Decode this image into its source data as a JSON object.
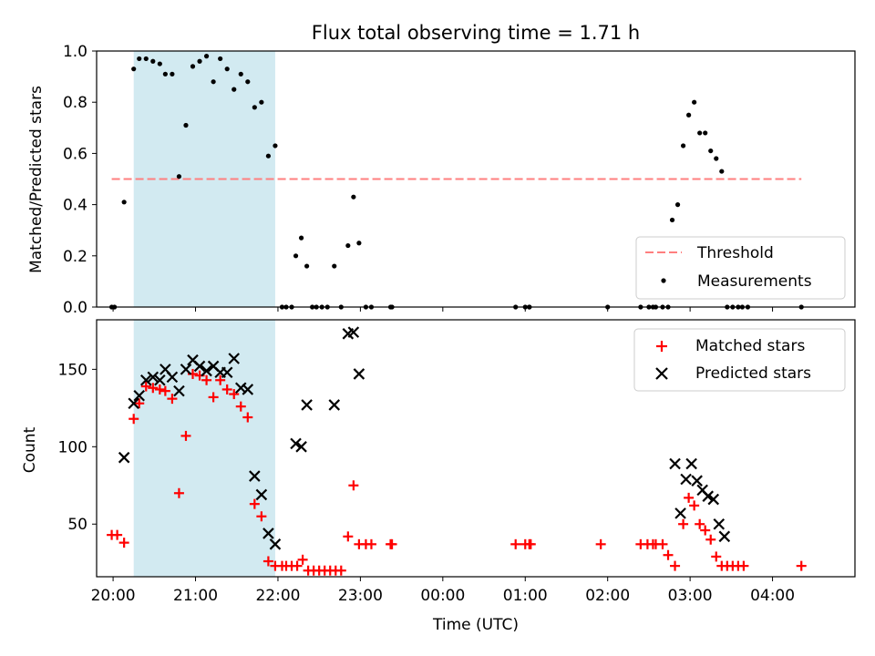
{
  "chart_data": [
    {
      "type": "scatter",
      "title": "Flux total observing time = 1.71 h",
      "ylabel": "Matched/Predicted stars",
      "xlim": [
        "19:48",
        "05:00"
      ],
      "ylim": [
        0,
        1.0
      ],
      "yticks": [
        "0.0",
        "0.2",
        "0.4",
        "0.6",
        "0.8",
        "1.0"
      ],
      "threshold": {
        "label": "Threshold",
        "value": 0.5,
        "x_range": [
          "19:59",
          "04:21"
        ],
        "color": "#ff7f7f"
      },
      "shaded_interval": {
        "start": "20:15",
        "end": "21:58",
        "color": "#add8e6"
      },
      "legend_position": "lower-right",
      "series": [
        {
          "name": "Measurements",
          "color": "#000000",
          "points": [
            [
              "19:59",
              0
            ],
            [
              "20:01",
              0
            ],
            [
              "20:08",
              0.41
            ],
            [
              "20:15",
              0.93
            ],
            [
              "20:19",
              0.97
            ],
            [
              "20:24",
              0.97
            ],
            [
              "20:29",
              0.96
            ],
            [
              "20:34",
              0.95
            ],
            [
              "20:38",
              0.91
            ],
            [
              "20:43",
              0.91
            ],
            [
              "20:48",
              0.51
            ],
            [
              "20:53",
              0.71
            ],
            [
              "20:58",
              0.94
            ],
            [
              "21:03",
              0.96
            ],
            [
              "21:08",
              0.98
            ],
            [
              "21:13",
              0.88
            ],
            [
              "21:18",
              0.97
            ],
            [
              "21:23",
              0.93
            ],
            [
              "21:28",
              0.85
            ],
            [
              "21:33",
              0.91
            ],
            [
              "21:38",
              0.88
            ],
            [
              "21:43",
              0.78
            ],
            [
              "21:48",
              0.8
            ],
            [
              "21:53",
              0.59
            ],
            [
              "21:58",
              0.63
            ],
            [
              "22:03",
              0
            ],
            [
              "22:06",
              0
            ],
            [
              "22:10",
              0
            ],
            [
              "22:13",
              0.2
            ],
            [
              "22:17",
              0.27
            ],
            [
              "22:21",
              0.16
            ],
            [
              "22:25",
              0
            ],
            [
              "22:28",
              0
            ],
            [
              "22:32",
              0
            ],
            [
              "22:36",
              0
            ],
            [
              "22:41",
              0.16
            ],
            [
              "22:46",
              0
            ],
            [
              "22:51",
              0.24
            ],
            [
              "22:55",
              0.43
            ],
            [
              "22:59",
              0.25
            ],
            [
              "23:04",
              0
            ],
            [
              "23:08",
              0
            ],
            [
              "23:22",
              0
            ],
            [
              "23:23",
              0
            ],
            [
              "00:53",
              0
            ],
            [
              "01:00",
              0
            ],
            [
              "01:03",
              0
            ],
            [
              "01:03",
              0
            ],
            [
              "02:00",
              0
            ],
            [
              "02:24",
              0
            ],
            [
              "02:30",
              0
            ],
            [
              "02:33",
              0
            ],
            [
              "02:35",
              0
            ],
            [
              "02:40",
              0
            ],
            [
              "02:44",
              0
            ],
            [
              "02:47",
              0.34
            ],
            [
              "02:51",
              0.4
            ],
            [
              "02:55",
              0.63
            ],
            [
              "02:59",
              0.75
            ],
            [
              "03:03",
              0.8
            ],
            [
              "03:07",
              0.68
            ],
            [
              "03:11",
              0.68
            ],
            [
              "03:15",
              0.61
            ],
            [
              "03:19",
              0.58
            ],
            [
              "03:23",
              0.53
            ],
            [
              "03:27",
              0
            ],
            [
              "03:31",
              0
            ],
            [
              "03:35",
              0
            ],
            [
              "03:38",
              0
            ],
            [
              "03:42",
              0
            ],
            [
              "04:21",
              0
            ]
          ]
        }
      ]
    },
    {
      "type": "scatter",
      "xlabel": "Time (UTC)",
      "ylabel": "Count",
      "xlim": [
        "19:48",
        "05:00"
      ],
      "ylim": [
        16,
        182
      ],
      "yticks": [
        "50",
        "100",
        "150"
      ],
      "xticks": [
        "20:00",
        "21:00",
        "22:00",
        "23:00",
        "00:00",
        "01:00",
        "02:00",
        "03:00",
        "04:00"
      ],
      "shaded_interval": {
        "start": "20:15",
        "end": "21:58",
        "color": "#add8e6"
      },
      "legend_position": "upper-right",
      "series": [
        {
          "name": "Matched stars",
          "marker": "+",
          "color": "#ff0000",
          "points": [
            [
              "19:59",
              43
            ],
            [
              "20:03",
              43
            ],
            [
              "20:08",
              38
            ],
            [
              "20:15",
              118
            ],
            [
              "20:19",
              128
            ],
            [
              "20:24",
              139
            ],
            [
              "20:29",
              138
            ],
            [
              "20:34",
              137
            ],
            [
              "20:38",
              136
            ],
            [
              "20:43",
              131
            ],
            [
              "20:48",
              70
            ],
            [
              "20:53",
              107
            ],
            [
              "20:58",
              147
            ],
            [
              "21:03",
              146
            ],
            [
              "21:08",
              143
            ],
            [
              "21:13",
              132
            ],
            [
              "21:18",
              143
            ],
            [
              "21:23",
              137
            ],
            [
              "21:28",
              134
            ],
            [
              "21:33",
              126
            ],
            [
              "21:38",
              119
            ],
            [
              "21:43",
              63
            ],
            [
              "21:48",
              55
            ],
            [
              "21:53",
              26
            ],
            [
              "21:58",
              23
            ],
            [
              "22:03",
              23
            ],
            [
              "22:06",
              23
            ],
            [
              "22:10",
              23
            ],
            [
              "22:14",
              23
            ],
            [
              "22:18",
              27
            ],
            [
              "22:22",
              20
            ],
            [
              "22:26",
              20
            ],
            [
              "22:30",
              20
            ],
            [
              "22:34",
              20
            ],
            [
              "22:38",
              20
            ],
            [
              "22:42",
              20
            ],
            [
              "22:46",
              20
            ],
            [
              "22:51",
              42
            ],
            [
              "22:55",
              75
            ],
            [
              "22:59",
              37
            ],
            [
              "23:04",
              37
            ],
            [
              "23:08",
              37
            ],
            [
              "23:22",
              37
            ],
            [
              "23:23",
              37
            ],
            [
              "00:53",
              37
            ],
            [
              "01:00",
              37
            ],
            [
              "01:03",
              37
            ],
            [
              "01:04",
              37
            ],
            [
              "01:55",
              37
            ],
            [
              "02:24",
              37
            ],
            [
              "02:29",
              37
            ],
            [
              "02:33",
              37
            ],
            [
              "02:35",
              37
            ],
            [
              "02:40",
              37
            ],
            [
              "02:44",
              30
            ],
            [
              "02:49",
              23
            ],
            [
              "02:55",
              50
            ],
            [
              "02:59",
              67
            ],
            [
              "03:03",
              62
            ],
            [
              "03:07",
              50
            ],
            [
              "03:11",
              46
            ],
            [
              "03:15",
              40
            ],
            [
              "03:19",
              29
            ],
            [
              "03:23",
              23
            ],
            [
              "03:27",
              23
            ],
            [
              "03:31",
              23
            ],
            [
              "03:35",
              23
            ],
            [
              "03:39",
              23
            ],
            [
              "04:21",
              23
            ]
          ]
        },
        {
          "name": "Predicted stars",
          "marker": "x",
          "color": "#000000",
          "points": [
            [
              "20:08",
              93
            ],
            [
              "20:15",
              128
            ],
            [
              "20:19",
              133
            ],
            [
              "20:24",
              143
            ],
            [
              "20:29",
              145
            ],
            [
              "20:34",
              143
            ],
            [
              "20:38",
              150
            ],
            [
              "20:43",
              145
            ],
            [
              "20:48",
              136
            ],
            [
              "20:53",
              150
            ],
            [
              "20:58",
              156
            ],
            [
              "21:03",
              152
            ],
            [
              "21:08",
              149
            ],
            [
              "21:13",
              152
            ],
            [
              "21:18",
              148
            ],
            [
              "21:23",
              148
            ],
            [
              "21:28",
              157
            ],
            [
              "21:33",
              138
            ],
            [
              "21:38",
              137
            ],
            [
              "21:43",
              81
            ],
            [
              "21:48",
              69
            ],
            [
              "21:53",
              44
            ],
            [
              "21:58",
              37
            ],
            [
              "22:13",
              102
            ],
            [
              "22:17",
              100
            ],
            [
              "22:21",
              127
            ],
            [
              "22:41",
              127
            ],
            [
              "22:51",
              173
            ],
            [
              "22:55",
              174
            ],
            [
              "22:59",
              147
            ],
            [
              "02:49",
              89
            ],
            [
              "02:53",
              57
            ],
            [
              "02:57",
              79
            ],
            [
              "03:01",
              89
            ],
            [
              "03:05",
              78
            ],
            [
              "03:09",
              72
            ],
            [
              "03:13",
              68
            ],
            [
              "03:17",
              66
            ],
            [
              "03:21",
              50
            ],
            [
              "03:25",
              42
            ]
          ]
        }
      ]
    }
  ]
}
